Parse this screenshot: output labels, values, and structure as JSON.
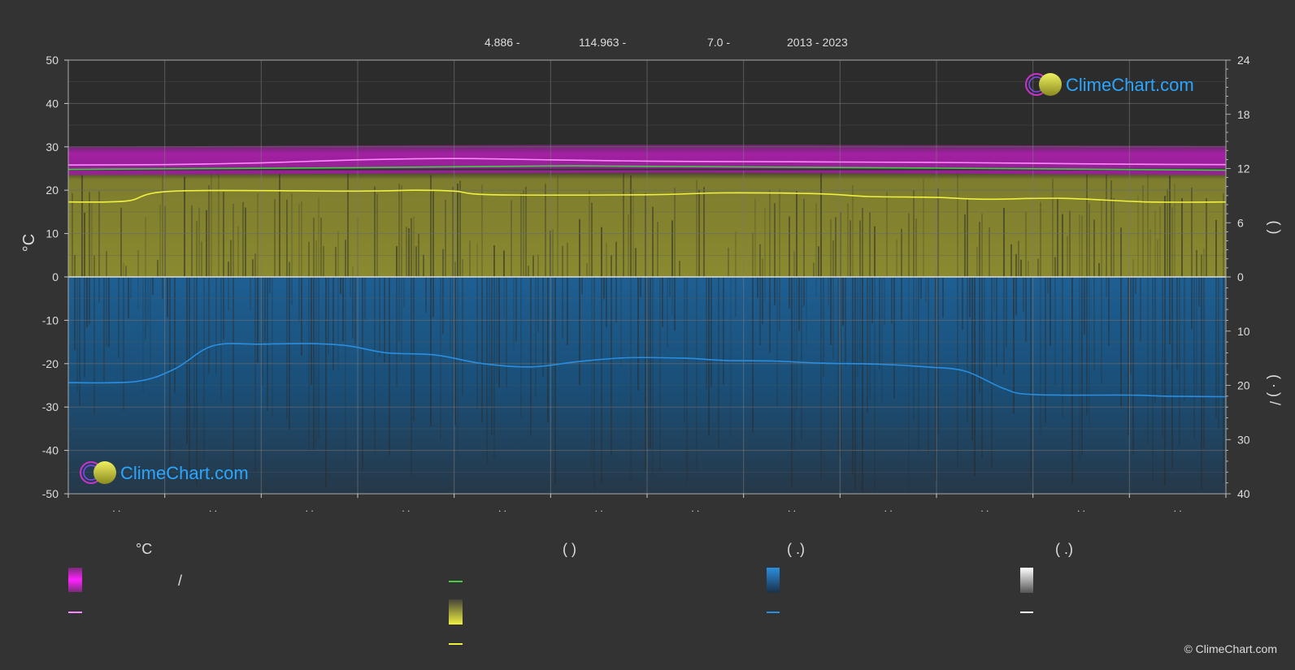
{
  "header": {
    "lat": "4.886 -",
    "lon": "114.963 -",
    "elev": "7.0 -",
    "years": "2013 - 2023"
  },
  "brand": {
    "name": "ClimeChart.com",
    "copyright": "© ClimeChart.com"
  },
  "legend": {
    "col1_head": "°C",
    "col2_head": "(          )",
    "col3_head": "(    .)",
    "col4_head": "(    .)",
    "col1_item1_sep": "/"
  },
  "colors": {
    "background": "#333333",
    "temp_band": "#cc22cc",
    "temp_line": "#ff88ff",
    "dew_line": "#44cc44",
    "sun_band": "#8a8a30",
    "sun_line": "#f0f040",
    "rain_band": "#1a5a8a",
    "rain_line": "#2a8ee0",
    "brand_blue": "#2aa6ff"
  },
  "chart_data": {
    "type": "area",
    "x_tick_labels": [
      ". .",
      ". .",
      ". .",
      ". .",
      ". .",
      ". .",
      ". .",
      ". .",
      ". .",
      ". .",
      ". .",
      ". ."
    ],
    "ylabel_left": "°C",
    "left_axis": {
      "range": [
        -50,
        50
      ],
      "ticks": [
        50,
        40,
        30,
        20,
        10,
        0,
        -10,
        -20,
        -30,
        -40,
        -50
      ]
    },
    "right_axis_top": {
      "range": [
        0,
        24
      ],
      "ticks": [
        24,
        18,
        12,
        6,
        0
      ]
    },
    "right_axis_bottom": {
      "range": [
        0,
        40
      ],
      "ticks": [
        0,
        10,
        20,
        30,
        40
      ]
    },
    "right_label_top": "(        )",
    "right_label_bottom": "(  ·  )   /",
    "grid": true,
    "series": [
      {
        "key": "temp_max",
        "points": [
          [
            0,
            30
          ],
          [
            6,
            30.5
          ],
          [
            12,
            30.2
          ]
        ]
      },
      {
        "key": "temp_min",
        "points": [
          [
            0,
            23.5
          ],
          [
            6,
            24
          ],
          [
            12,
            23.5
          ]
        ]
      },
      {
        "key": "temp_mean",
        "points": [
          [
            0,
            25.8
          ],
          [
            1,
            25.9
          ],
          [
            2,
            26.3
          ],
          [
            3,
            27.0
          ],
          [
            4,
            27.3
          ],
          [
            5,
            27.0
          ],
          [
            6,
            26.7
          ],
          [
            7,
            26.6
          ],
          [
            8,
            26.5
          ],
          [
            9,
            26.4
          ],
          [
            10,
            26.2
          ],
          [
            11,
            26.0
          ],
          [
            12,
            25.9
          ]
        ]
      },
      {
        "key": "dew_point",
        "points": [
          [
            0,
            24.8
          ],
          [
            3,
            25.2
          ],
          [
            5,
            25.6
          ],
          [
            6,
            25.5
          ],
          [
            9,
            25.1
          ],
          [
            12,
            24.6
          ]
        ]
      },
      {
        "key": "daylight",
        "points": [
          [
            0,
            11.9
          ],
          [
            12,
            11.9
          ]
        ]
      },
      {
        "key": "sunshine",
        "points": [
          [
            0,
            8.3
          ],
          [
            0.6,
            8.4
          ],
          [
            1.1,
            9.5
          ],
          [
            3,
            9.5
          ],
          [
            3.6,
            9.6
          ],
          [
            4.0,
            9.5
          ],
          [
            4.4,
            9.1
          ],
          [
            6.0,
            9.1
          ],
          [
            6.8,
            9.3
          ],
          [
            7.8,
            9.2
          ],
          [
            8.3,
            8.9
          ],
          [
            9.0,
            8.8
          ],
          [
            9.5,
            8.6
          ],
          [
            10.3,
            8.7
          ],
          [
            11.2,
            8.3
          ],
          [
            12,
            8.3
          ]
        ]
      },
      {
        "key": "precip",
        "points": [
          [
            0,
            19.5
          ],
          [
            0.7,
            19.3
          ],
          [
            1.1,
            17.0
          ],
          [
            1.5,
            12.7
          ],
          [
            2.0,
            12.4
          ],
          [
            2.5,
            12.3
          ],
          [
            2.9,
            12.7
          ],
          [
            3.3,
            14.0
          ],
          [
            3.8,
            14.4
          ],
          [
            4.3,
            16.0
          ],
          [
            4.8,
            16.6
          ],
          [
            5.3,
            15.6
          ],
          [
            5.8,
            14.9
          ],
          [
            6.4,
            15.0
          ],
          [
            6.8,
            15.4
          ],
          [
            7.3,
            15.5
          ],
          [
            7.8,
            15.9
          ],
          [
            8.4,
            16.1
          ],
          [
            8.9,
            16.6
          ],
          [
            9.3,
            17.4
          ],
          [
            9.7,
            20.6
          ],
          [
            10.0,
            21.7
          ],
          [
            11.0,
            21.8
          ],
          [
            11.4,
            22.0
          ],
          [
            12,
            22.1
          ]
        ]
      }
    ]
  }
}
